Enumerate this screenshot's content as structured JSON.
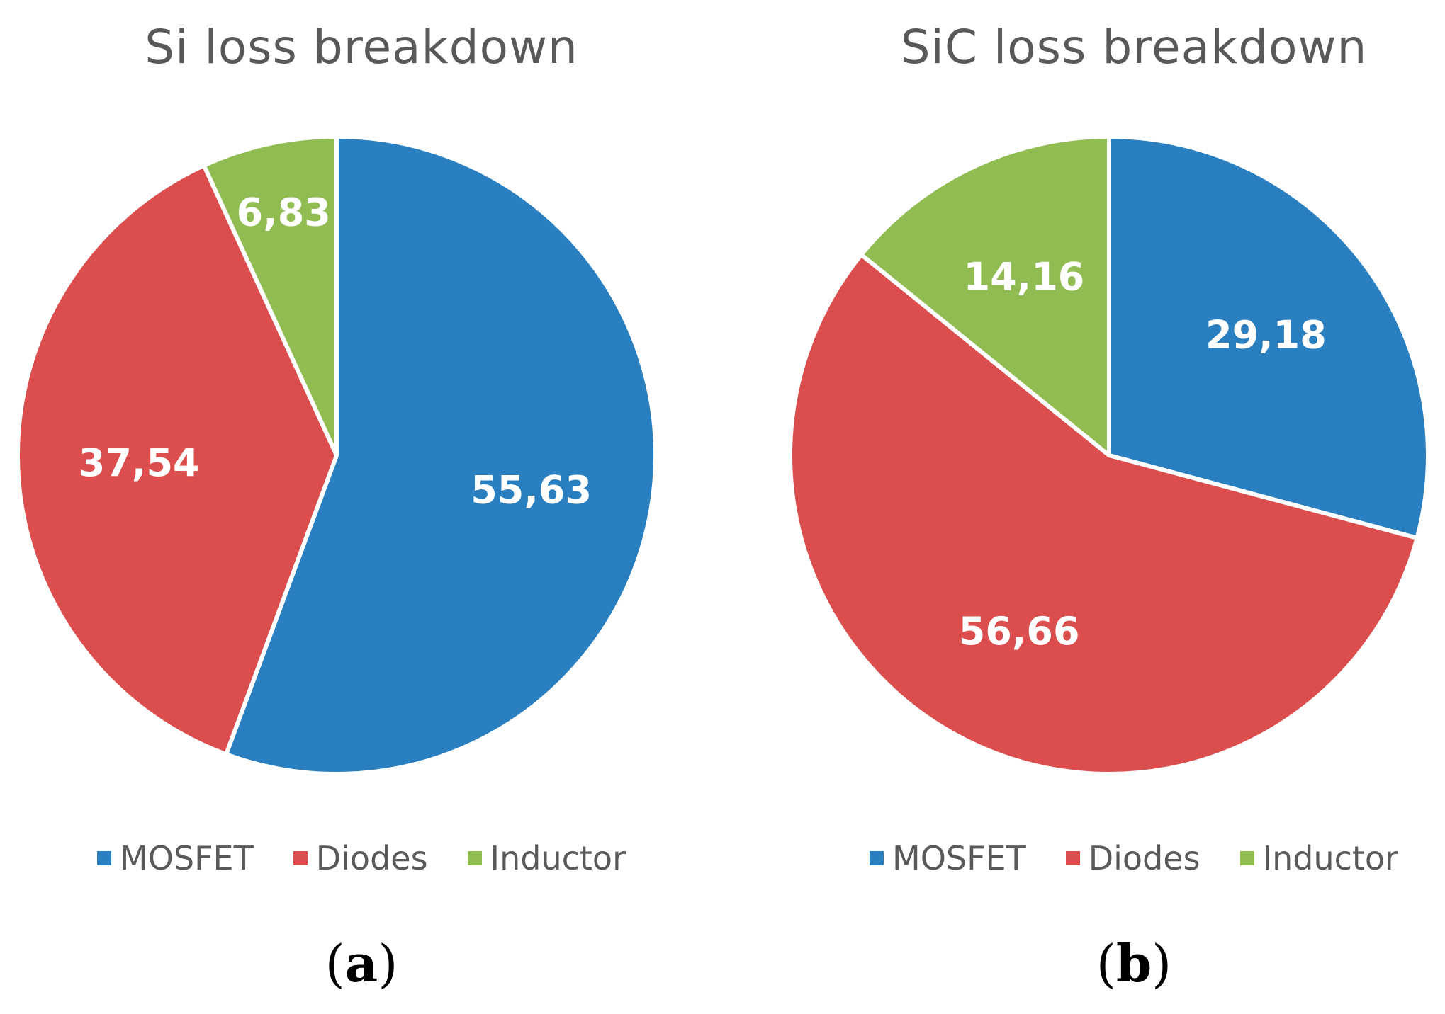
{
  "chart_data": [
    {
      "type": "pie",
      "id": "a",
      "title": "Si loss breakdown",
      "categories": [
        "MOSFET",
        "Diodes",
        "Inductor"
      ],
      "values": [
        55.63,
        37.54,
        6.83
      ],
      "data_labels": [
        "55,63",
        "37,54",
        "6,83"
      ],
      "colors": [
        "#2a7fc0",
        "#dc4e4e",
        "#90bc51"
      ],
      "legend_position": "bottom",
      "caption_letter": "a"
    },
    {
      "type": "pie",
      "id": "b",
      "title": "SiC loss breakdown",
      "categories": [
        "MOSFET",
        "Diodes",
        "Inductor"
      ],
      "values": [
        29.18,
        56.66,
        14.16
      ],
      "data_labels": [
        "29,18",
        "56,66",
        "14,16"
      ],
      "colors": [
        "#2a7fc0",
        "#dc4e4e",
        "#90bc51"
      ],
      "legend_position": "bottom",
      "caption_letter": "b"
    }
  ]
}
